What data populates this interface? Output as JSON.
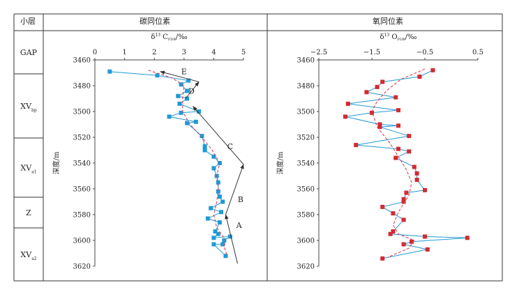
{
  "table": {
    "header_layer": "小层",
    "header_c": "碳同位素",
    "header_o": "氧同位素"
  },
  "layers": [
    {
      "main": "GAP",
      "sub": ""
    },
    {
      "main": "XV",
      "sub": "bp"
    },
    {
      "main": "XV",
      "sub": "a1"
    },
    {
      "main": "Z",
      "sub": ""
    },
    {
      "main": "XV",
      "sub": "a2"
    }
  ],
  "chart_data": [
    {
      "type": "line",
      "xlabel_main": "δ",
      "xlabel_sup": "13",
      "xlabel_sym": " C",
      "xlabel_sub": "PDB",
      "xlabel_unit": "/‰",
      "ylabel": "深度/m",
      "xlim": [
        0,
        5
      ],
      "ylim": [
        3460,
        3620
      ],
      "xticks": [
        "0",
        "1",
        "2",
        "3",
        "4",
        "5"
      ],
      "yticks": [
        "3460",
        "3480",
        "3500",
        "3520",
        "3540",
        "3560",
        "3580",
        "3600",
        "3620"
      ],
      "series": [
        {
          "kind": "measured",
          "color": "#1f9ad6",
          "points": [
            [
              0.5,
              3469
            ],
            [
              2.1,
              3472
            ],
            [
              3.15,
              3476
            ],
            [
              2.9,
              3479
            ],
            [
              3.1,
              3484
            ],
            [
              2.8,
              3488
            ],
            [
              3.1,
              3490
            ],
            [
              2.85,
              3494
            ],
            [
              3.5,
              3500
            ],
            [
              2.9,
              3501
            ],
            [
              2.5,
              3504
            ],
            [
              3.4,
              3508
            ],
            [
              3.1,
              3509
            ],
            [
              3.6,
              3519
            ],
            [
              3.7,
              3527
            ],
            [
              3.7,
              3530
            ],
            [
              4.0,
              3535
            ],
            [
              4.2,
              3540
            ],
            [
              4.0,
              3544
            ],
            [
              4.1,
              3550
            ],
            [
              4.15,
              3555
            ],
            [
              4.15,
              3562
            ],
            [
              4.2,
              3566
            ],
            [
              4.3,
              3570
            ],
            [
              3.9,
              3575
            ],
            [
              4.25,
              3578
            ],
            [
              3.8,
              3583
            ],
            [
              4.2,
              3586
            ],
            [
              4.05,
              3593
            ],
            [
              4.15,
              3595
            ],
            [
              4.0,
              3598
            ],
            [
              4.55,
              3597
            ],
            [
              4.35,
              3600
            ],
            [
              4.3,
              3603
            ],
            [
              4.0,
              3603
            ],
            [
              4.4,
              3612
            ]
          ]
        },
        {
          "kind": "trend",
          "color": "#d9405a",
          "points": [
            [
              1.8,
              3468
            ],
            [
              2.6,
              3474
            ],
            [
              3.0,
              3480
            ],
            [
              2.95,
              3490
            ],
            [
              2.95,
              3500
            ],
            [
              3.2,
              3510
            ],
            [
              3.6,
              3520
            ],
            [
              3.95,
              3530
            ],
            [
              4.2,
              3540
            ],
            [
              4.1,
              3550
            ],
            [
              4.15,
              3560
            ],
            [
              4.1,
              3570
            ],
            [
              4.0,
              3580
            ],
            [
              4.1,
              3590
            ],
            [
              4.4,
              3600
            ],
            [
              4.35,
              3605
            ],
            [
              4.45,
              3612
            ]
          ]
        }
      ],
      "annotations": [
        {
          "label": "A",
          "from": [
            4.8,
            3618
          ],
          "to": [
            4.4,
            3580
          ],
          "label_at": [
            4.85,
            3588
          ]
        },
        {
          "label": "B",
          "from": [
            4.4,
            3580
          ],
          "to": [
            5.0,
            3541
          ],
          "label_at": [
            4.9,
            3568
          ]
        },
        {
          "label": "C",
          "from": [
            5.0,
            3541
          ],
          "to": [
            3.3,
            3496
          ],
          "label_at": [
            4.55,
            3527
          ]
        },
        {
          "label": "D",
          "from": [
            3.05,
            3490
          ],
          "to": [
            3.5,
            3477
          ],
          "label_at": [
            3.25,
            3484
          ]
        },
        {
          "label": "E",
          "from": [
            3.5,
            3477
          ],
          "to": [
            2.2,
            3469
          ],
          "label_at": [
            3.0,
            3469
          ]
        }
      ]
    },
    {
      "type": "line",
      "xlabel_main": "δ",
      "xlabel_sup": "13",
      "xlabel_sym": " O",
      "xlabel_sub": "PDB",
      "xlabel_unit": "/‰",
      "ylabel": "深度/m",
      "xlim": [
        -2.5,
        0.5
      ],
      "ylim": [
        3460,
        3620
      ],
      "xticks": [
        "−2.5",
        "−1.5",
        "−0.5",
        "0.5"
      ],
      "yticks": [
        "3460",
        "3480",
        "3500",
        "3520",
        "3540",
        "3560",
        "3580",
        "3600",
        "3620"
      ],
      "series": [
        {
          "kind": "measured",
          "color": "#1f9ad6",
          "marker_color": "#d42a30",
          "points": [
            [
              -0.35,
              3468
            ],
            [
              -0.6,
              3473
            ],
            [
              -1.3,
              3477
            ],
            [
              -1.4,
              3481
            ],
            [
              -1.6,
              3485
            ],
            [
              -1.05,
              3489
            ],
            [
              -1.95,
              3494
            ],
            [
              -1.0,
              3499
            ],
            [
              -1.5,
              3501
            ],
            [
              -2.0,
              3504
            ],
            [
              -1.35,
              3510
            ],
            [
              -1.0,
              3511
            ],
            [
              -1.35,
              3512
            ],
            [
              -0.8,
              3519
            ],
            [
              -1.8,
              3526
            ],
            [
              -1.0,
              3529
            ],
            [
              -0.8,
              3531
            ],
            [
              -1.05,
              3536
            ],
            [
              -0.7,
              3543
            ],
            [
              -0.65,
              3548
            ],
            [
              -0.65,
              3553
            ],
            [
              -0.5,
              3561
            ],
            [
              -0.85,
              3563
            ],
            [
              -0.9,
              3568
            ],
            [
              -0.9,
              3570
            ],
            [
              -1.3,
              3574
            ],
            [
              -1.1,
              3579
            ],
            [
              -0.9,
              3584
            ],
            [
              -1.1,
              3593
            ],
            [
              -1.15,
              3595
            ],
            [
              -0.5,
              3597
            ],
            [
              0.3,
              3598
            ],
            [
              -0.75,
              3601
            ],
            [
              -0.9,
              3603
            ],
            [
              -0.45,
              3607
            ],
            [
              -1.3,
              3614
            ]
          ]
        },
        {
          "kind": "trend",
          "color": "#d9405a",
          "points": [
            [
              -0.5,
              3467
            ],
            [
              -0.95,
              3475
            ],
            [
              -1.2,
              3483
            ],
            [
              -1.4,
              3492
            ],
            [
              -1.5,
              3500
            ],
            [
              -1.4,
              3512
            ],
            [
              -1.15,
              3525
            ],
            [
              -1.0,
              3535
            ],
            [
              -0.85,
              3545
            ],
            [
              -0.75,
              3555
            ],
            [
              -0.8,
              3565
            ],
            [
              -1.0,
              3578
            ],
            [
              -1.1,
              3588
            ],
            [
              -1.0,
              3595
            ],
            [
              -0.7,
              3600
            ],
            [
              -0.8,
              3606
            ],
            [
              -1.2,
              3613
            ]
          ]
        }
      ]
    }
  ]
}
